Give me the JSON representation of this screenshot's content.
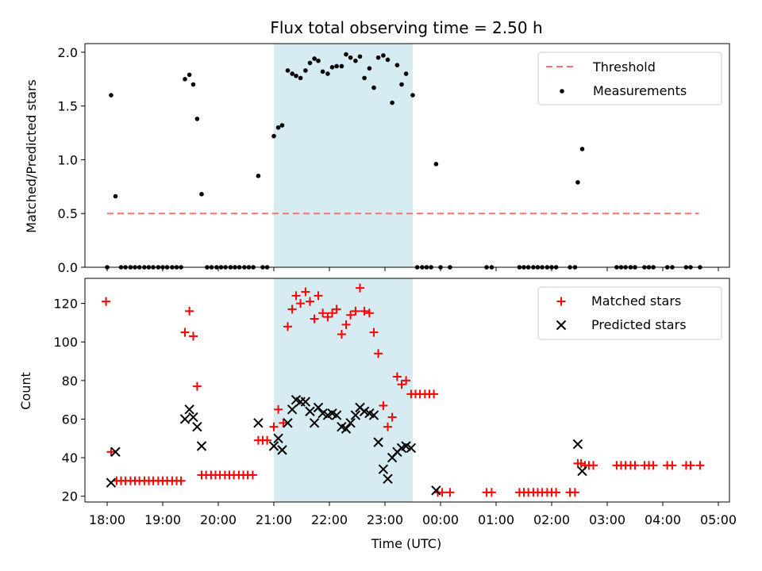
{
  "title": "Flux total observing time = 2.50 h",
  "colors": {
    "threshold": "#ff6f6f",
    "measurement": "#000000",
    "matched": "#ff0000",
    "predicted": "#000000",
    "span": "#add8e6"
  },
  "chart_data": [
    {
      "type": "scatter",
      "ylabel": "Matched/Predicted stars",
      "xlim": [
        17.6,
        5.2
      ],
      "ylim": [
        0.0,
        2.08
      ],
      "yticks": [
        "0.0",
        "0.5",
        "1.0",
        "1.5",
        "2.0"
      ],
      "ytick_values": [
        0.0,
        0.5,
        1.0,
        1.5,
        2.0
      ],
      "highlight_span": [
        21.0,
        23.5
      ],
      "threshold": {
        "name": "Threshold",
        "y": 0.5,
        "x": [
          18.0,
          4.65
        ]
      },
      "legend_location": "top-right",
      "series": [
        {
          "name": "Measurements",
          "points": [
            [
              18.0,
              0.0
            ],
            [
              18.07,
              1.6
            ],
            [
              18.15,
              0.66
            ],
            [
              18.25,
              0.0
            ],
            [
              18.33,
              0.0
            ],
            [
              18.42,
              0.0
            ],
            [
              18.5,
              0.0
            ],
            [
              18.58,
              0.0
            ],
            [
              18.67,
              0.0
            ],
            [
              18.75,
              0.0
            ],
            [
              18.83,
              0.0
            ],
            [
              18.92,
              0.0
            ],
            [
              19.0,
              0.0
            ],
            [
              19.08,
              0.0
            ],
            [
              19.17,
              0.0
            ],
            [
              19.25,
              0.0
            ],
            [
              19.33,
              0.0
            ],
            [
              19.4,
              1.75
            ],
            [
              19.48,
              1.79
            ],
            [
              19.55,
              1.7
            ],
            [
              19.62,
              1.38
            ],
            [
              19.7,
              0.68
            ],
            [
              19.8,
              0.0
            ],
            [
              19.88,
              0.0
            ],
            [
              19.97,
              0.0
            ],
            [
              20.05,
              0.0
            ],
            [
              20.13,
              0.0
            ],
            [
              20.22,
              0.0
            ],
            [
              20.3,
              0.0
            ],
            [
              20.38,
              0.0
            ],
            [
              20.47,
              0.0
            ],
            [
              20.55,
              0.0
            ],
            [
              20.63,
              0.0
            ],
            [
              20.72,
              0.85
            ],
            [
              20.8,
              0.0
            ],
            [
              20.88,
              0.0
            ],
            [
              21.0,
              1.22
            ],
            [
              21.08,
              1.3
            ],
            [
              21.15,
              1.32
            ],
            [
              21.25,
              1.83
            ],
            [
              21.33,
              1.8
            ],
            [
              21.4,
              1.78
            ],
            [
              21.48,
              1.76
            ],
            [
              21.57,
              1.83
            ],
            [
              21.65,
              1.9
            ],
            [
              21.73,
              1.94
            ],
            [
              21.8,
              1.92
            ],
            [
              21.88,
              1.82
            ],
            [
              21.97,
              1.8
            ],
            [
              22.05,
              1.86
            ],
            [
              22.13,
              1.87
            ],
            [
              22.22,
              1.87
            ],
            [
              22.3,
              1.98
            ],
            [
              22.38,
              1.95
            ],
            [
              22.47,
              1.92
            ],
            [
              22.55,
              1.96
            ],
            [
              22.63,
              1.76
            ],
            [
              22.72,
              1.85
            ],
            [
              22.8,
              1.67
            ],
            [
              22.88,
              1.95
            ],
            [
              22.97,
              1.97
            ],
            [
              23.05,
              1.93
            ],
            [
              23.13,
              1.53
            ],
            [
              23.22,
              1.88
            ],
            [
              23.3,
              1.7
            ],
            [
              23.38,
              1.8
            ],
            [
              23.5,
              1.6
            ],
            [
              23.58,
              0.0
            ],
            [
              23.67,
              0.0
            ],
            [
              23.75,
              0.0
            ],
            [
              23.83,
              0.0
            ],
            [
              23.92,
              0.96
            ],
            [
              24.0,
              0.0
            ],
            [
              24.17,
              0.0
            ],
            [
              24.83,
              0.0
            ],
            [
              24.92,
              0.0
            ],
            [
              25.42,
              0.0
            ],
            [
              25.5,
              0.0
            ],
            [
              25.58,
              0.0
            ],
            [
              25.67,
              0.0
            ],
            [
              25.75,
              0.0
            ],
            [
              25.83,
              0.0
            ],
            [
              25.92,
              0.0
            ],
            [
              26.0,
              0.0
            ],
            [
              26.08,
              0.0
            ],
            [
              26.33,
              0.0
            ],
            [
              26.42,
              0.0
            ],
            [
              26.47,
              0.79
            ],
            [
              26.55,
              1.1
            ],
            [
              27.17,
              0.0
            ],
            [
              27.25,
              0.0
            ],
            [
              27.33,
              0.0
            ],
            [
              27.42,
              0.0
            ],
            [
              27.5,
              0.0
            ],
            [
              27.67,
              0.0
            ],
            [
              27.75,
              0.0
            ],
            [
              27.83,
              0.0
            ],
            [
              28.08,
              0.0
            ],
            [
              28.17,
              0.0
            ],
            [
              28.42,
              0.0
            ],
            [
              28.5,
              0.0
            ],
            [
              28.67,
              0.0
            ]
          ]
        }
      ]
    },
    {
      "type": "scatter",
      "ylabel": "Count",
      "xlabel": "Time (UTC)",
      "xlim": [
        17.6,
        5.2
      ],
      "ylim": [
        17,
        133
      ],
      "yticks": [
        "20",
        "40",
        "60",
        "80",
        "100",
        "120"
      ],
      "ytick_values": [
        20,
        40,
        60,
        80,
        100,
        120
      ],
      "xticks": [
        "18:00",
        "19:00",
        "20:00",
        "21:00",
        "22:00",
        "23:00",
        "00:00",
        "01:00",
        "02:00",
        "03:00",
        "04:00",
        "05:00"
      ],
      "xtick_values": [
        18,
        19,
        20,
        21,
        22,
        23,
        24,
        25,
        26,
        27,
        28,
        29
      ],
      "highlight_span": [
        21.0,
        23.5
      ],
      "legend_location": "top-right",
      "series": [
        {
          "name": "Matched stars",
          "marker": "plus",
          "points": [
            [
              17.98,
              121
            ],
            [
              18.07,
              43
            ],
            [
              18.17,
              28
            ],
            [
              18.25,
              28
            ],
            [
              18.33,
              28
            ],
            [
              18.42,
              28
            ],
            [
              18.5,
              28
            ],
            [
              18.58,
              28
            ],
            [
              18.67,
              28
            ],
            [
              18.75,
              28
            ],
            [
              18.83,
              28
            ],
            [
              18.92,
              28
            ],
            [
              19.0,
              28
            ],
            [
              19.08,
              28
            ],
            [
              19.17,
              28
            ],
            [
              19.25,
              28
            ],
            [
              19.33,
              28
            ],
            [
              19.4,
              105
            ],
            [
              19.48,
              116
            ],
            [
              19.55,
              103
            ],
            [
              19.62,
              77
            ],
            [
              19.7,
              31
            ],
            [
              19.78,
              31
            ],
            [
              19.87,
              31
            ],
            [
              19.95,
              31
            ],
            [
              20.03,
              31
            ],
            [
              20.12,
              31
            ],
            [
              20.2,
              31
            ],
            [
              20.28,
              31
            ],
            [
              20.37,
              31
            ],
            [
              20.45,
              31
            ],
            [
              20.53,
              31
            ],
            [
              20.62,
              31
            ],
            [
              20.72,
              49
            ],
            [
              20.8,
              49
            ],
            [
              20.88,
              49
            ],
            [
              21.0,
              56
            ],
            [
              21.08,
              65
            ],
            [
              21.17,
              58
            ],
            [
              21.25,
              108
            ],
            [
              21.33,
              117
            ],
            [
              21.4,
              124
            ],
            [
              21.48,
              120
            ],
            [
              21.57,
              126
            ],
            [
              21.65,
              121
            ],
            [
              21.73,
              112
            ],
            [
              21.8,
              124
            ],
            [
              21.88,
              115
            ],
            [
              21.97,
              113
            ],
            [
              22.05,
              115
            ],
            [
              22.13,
              117
            ],
            [
              22.22,
              104
            ],
            [
              22.3,
              109
            ],
            [
              22.38,
              114
            ],
            [
              22.47,
              116
            ],
            [
              22.55,
              128
            ],
            [
              22.63,
              116
            ],
            [
              22.72,
              115
            ],
            [
              22.8,
              105
            ],
            [
              22.88,
              94
            ],
            [
              22.97,
              67
            ],
            [
              23.05,
              56
            ],
            [
              23.13,
              61
            ],
            [
              23.22,
              82
            ],
            [
              23.3,
              78
            ],
            [
              23.38,
              80
            ],
            [
              23.47,
              73
            ],
            [
              23.55,
              73
            ],
            [
              23.63,
              73
            ],
            [
              23.72,
              73
            ],
            [
              23.8,
              73
            ],
            [
              23.88,
              73
            ],
            [
              23.95,
              22
            ],
            [
              24.03,
              22
            ],
            [
              24.17,
              22
            ],
            [
              24.83,
              22
            ],
            [
              24.92,
              22
            ],
            [
              25.42,
              22
            ],
            [
              25.5,
              22
            ],
            [
              25.58,
              22
            ],
            [
              25.67,
              22
            ],
            [
              25.75,
              22
            ],
            [
              25.83,
              22
            ],
            [
              25.92,
              22
            ],
            [
              26.0,
              22
            ],
            [
              26.08,
              22
            ],
            [
              26.33,
              22
            ],
            [
              26.42,
              22
            ],
            [
              26.47,
              37
            ],
            [
              26.53,
              37
            ],
            [
              26.6,
              36
            ],
            [
              26.67,
              36
            ],
            [
              26.75,
              36
            ],
            [
              27.17,
              36
            ],
            [
              27.25,
              36
            ],
            [
              27.33,
              36
            ],
            [
              27.42,
              36
            ],
            [
              27.5,
              36
            ],
            [
              27.67,
              36
            ],
            [
              27.75,
              36
            ],
            [
              27.83,
              36
            ],
            [
              28.08,
              36
            ],
            [
              28.17,
              36
            ],
            [
              28.42,
              36
            ],
            [
              28.5,
              36
            ],
            [
              28.67,
              36
            ]
          ]
        },
        {
          "name": "Predicted stars",
          "marker": "x",
          "points": [
            [
              18.07,
              27
            ],
            [
              18.15,
              43
            ],
            [
              19.4,
              60
            ],
            [
              19.48,
              65
            ],
            [
              19.55,
              61
            ],
            [
              19.62,
              56
            ],
            [
              19.7,
              46
            ],
            [
              20.72,
              58
            ],
            [
              21.0,
              46
            ],
            [
              21.08,
              50
            ],
            [
              21.15,
              44
            ],
            [
              21.25,
              58
            ],
            [
              21.33,
              65
            ],
            [
              21.4,
              70
            ],
            [
              21.48,
              69
            ],
            [
              21.57,
              69
            ],
            [
              21.65,
              64
            ],
            [
              21.73,
              58
            ],
            [
              21.8,
              66
            ],
            [
              21.88,
              63
            ],
            [
              21.97,
              62
            ],
            [
              22.05,
              63
            ],
            [
              22.13,
              62
            ],
            [
              22.22,
              56
            ],
            [
              22.3,
              55
            ],
            [
              22.38,
              58
            ],
            [
              22.47,
              62
            ],
            [
              22.55,
              66
            ],
            [
              22.63,
              64
            ],
            [
              22.72,
              63
            ],
            [
              22.8,
              62
            ],
            [
              22.88,
              48
            ],
            [
              22.97,
              34
            ],
            [
              23.05,
              29
            ],
            [
              23.13,
              40
            ],
            [
              23.22,
              43
            ],
            [
              23.3,
              45
            ],
            [
              23.38,
              46
            ],
            [
              23.47,
              45
            ],
            [
              23.92,
              23
            ],
            [
              26.47,
              47
            ],
            [
              26.55,
              33
            ]
          ]
        }
      ]
    }
  ]
}
